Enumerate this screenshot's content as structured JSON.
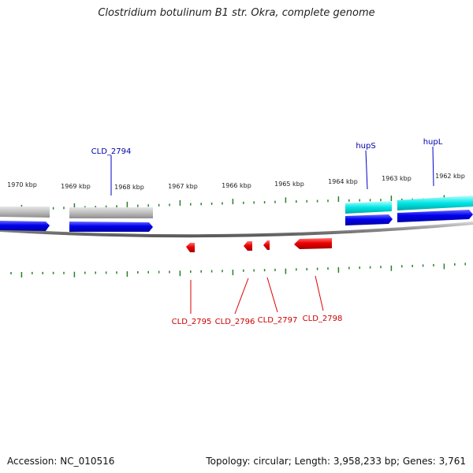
{
  "title": "Clostridium botulinum B1 str. Okra, complete genome",
  "footer": {
    "accession": "Accession: NC_010516",
    "summary": "Topology: circular; Length: 3,958,233 bp; Genes: 3,761"
  },
  "colors": {
    "backbone": "#8c8c8c",
    "tick": "#2a7d2a",
    "forward_gene": "#0000dd",
    "forward_label": "#0000aa",
    "reverse_gene": "#ee0000",
    "reverse_label": "#cc0000",
    "gray_feature": "#b8b8b8",
    "cyan_feature": "#00e0e0"
  },
  "scale_labels": [
    "1970 kbp",
    "1969 kbp",
    "1968 kbp",
    "1967 kbp",
    "1966 kbp",
    "1965 kbp",
    "1964 kbp",
    "1963 kbp",
    "1962 kbp"
  ],
  "forward_genes": [
    {
      "name": "CLD_2794",
      "labeled": true
    },
    {
      "name": "hupS",
      "labeled": true
    },
    {
      "name": "hupL",
      "labeled": true
    }
  ],
  "reverse_genes": [
    {
      "name": "CLD_2795"
    },
    {
      "name": "CLD_2796"
    },
    {
      "name": "CLD_2797"
    },
    {
      "name": "CLD_2798"
    }
  ]
}
